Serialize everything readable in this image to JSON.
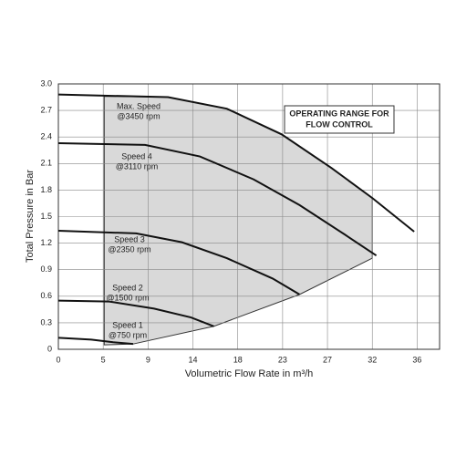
{
  "chart_data": {
    "type": "line",
    "x_label": "Volumetric Flow Rate in m³/h",
    "y_label": "Total Pressure in Bar",
    "xlim": [
      0,
      38.25
    ],
    "ylim": [
      0,
      3.0
    ],
    "xticks": [
      0,
      {
        "value": 4.5,
        "label": "5"
      },
      9,
      {
        "value": 13.5,
        "label": "14"
      },
      18,
      {
        "value": 22.5,
        "label": "23"
      },
      27,
      {
        "value": 31.5,
        "label": "32"
      },
      36
    ],
    "yticks": [
      0,
      0.3,
      0.6,
      0.9,
      1.2,
      1.5,
      1.8,
      2.1,
      2.4,
      2.7,
      {
        "value": 3.0,
        "label": "3.0"
      }
    ],
    "grid": true,
    "operating_range": {
      "label_lines": [
        "OPERATING RANGE FOR",
        "FLOW CONTROL"
      ],
      "color": "#d9d9d9",
      "x": [
        4.6,
        4.6,
        11,
        16.9,
        22.4,
        27.4,
        31.5,
        31.5,
        24.2,
        15.6,
        7.5,
        4.6
      ],
      "y": [
        0.05,
        2.86,
        2.85,
        2.72,
        2.43,
        2.05,
        1.71,
        1.03,
        0.62,
        0.26,
        0.06,
        0.05
      ]
    },
    "series": [
      {
        "name": "Max. Speed",
        "speed": "@3450 rpm",
        "color": "#111111",
        "x": [
          0,
          11,
          16.9,
          22.4,
          27.4,
          31.5,
          35.7
        ],
        "values": [
          2.88,
          2.85,
          2.72,
          2.43,
          2.05,
          1.71,
          1.33
        ]
      },
      {
        "name": "Speed 4",
        "speed": "@3110 rpm",
        "color": "#111111",
        "x": [
          0,
          8.7,
          14.2,
          19.6,
          24.2,
          28.7,
          31.9
        ],
        "values": [
          2.33,
          2.31,
          2.18,
          1.92,
          1.63,
          1.3,
          1.06
        ]
      },
      {
        "name": "Speed 3",
        "speed": "@2350 rpm",
        "color": "#111111",
        "x": [
          0,
          7.8,
          12.4,
          16.9,
          21.5,
          24.2
        ],
        "values": [
          1.34,
          1.31,
          1.21,
          1.03,
          0.8,
          0.62
        ]
      },
      {
        "name": "Speed 2",
        "speed": "@1500 rpm",
        "color": "#111111",
        "x": [
          0,
          5.1,
          9.6,
          13.3,
          15.6
        ],
        "values": [
          0.55,
          0.54,
          0.46,
          0.36,
          0.26
        ]
      },
      {
        "name": "Speed 1",
        "speed": "@750 rpm",
        "color": "#111111",
        "x": [
          0,
          3.3,
          5.5,
          7.5
        ],
        "values": [
          0.13,
          0.11,
          0.08,
          0.06
        ]
      }
    ]
  }
}
